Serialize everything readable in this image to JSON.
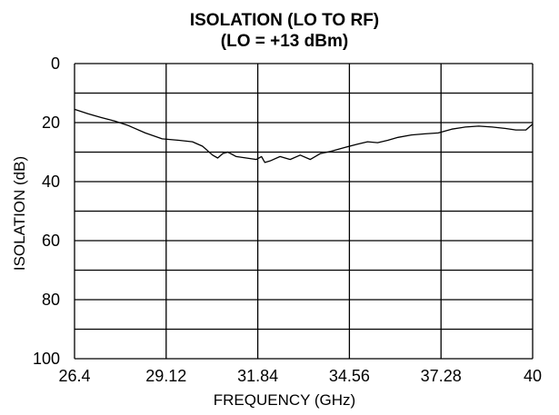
{
  "chart_data": {
    "type": "line",
    "title": "ISOLATION (LO TO RF)",
    "subtitle": "(LO = +13 dBm)",
    "xlabel": "FREQUENCY (GHz)",
    "ylabel": "ISOLATION (dB)",
    "xlim": [
      26.4,
      40
    ],
    "ylim": [
      0,
      100
    ],
    "y_inverted": true,
    "x_ticks": [
      "26.4",
      "29.12",
      "31.84",
      "34.56",
      "37.28",
      "40"
    ],
    "y_ticks": [
      "0",
      "20",
      "40",
      "60",
      "80",
      "100"
    ],
    "grid": true,
    "legend": "none",
    "series": [
      {
        "color": "#000000",
        "x": [
          26.4,
          26.8,
          27.2,
          27.6,
          28.0,
          28.5,
          29.0,
          29.5,
          29.9,
          30.2,
          30.5,
          30.65,
          30.8,
          30.95,
          31.2,
          31.5,
          31.8,
          31.95,
          32.05,
          32.2,
          32.5,
          32.8,
          33.1,
          33.4,
          33.7,
          34.0,
          34.4,
          34.8,
          35.1,
          35.4,
          35.7,
          36.0,
          36.4,
          36.8,
          37.2,
          37.6,
          38.0,
          38.4,
          38.8,
          39.2,
          39.5,
          39.8,
          40.0
        ],
        "y": [
          15.5,
          17.0,
          18.3,
          19.5,
          21.0,
          23.5,
          25.5,
          26.0,
          26.5,
          28.0,
          31.0,
          32.0,
          30.5,
          30.0,
          31.5,
          32.0,
          32.5,
          31.5,
          33.5,
          33.0,
          31.5,
          32.5,
          31.0,
          32.5,
          30.5,
          29.8,
          28.5,
          27.3,
          26.5,
          26.8,
          26.0,
          25.0,
          24.2,
          23.8,
          23.5,
          22.2,
          21.5,
          21.2,
          21.5,
          22.0,
          22.5,
          22.5,
          20.5
        ]
      }
    ]
  }
}
